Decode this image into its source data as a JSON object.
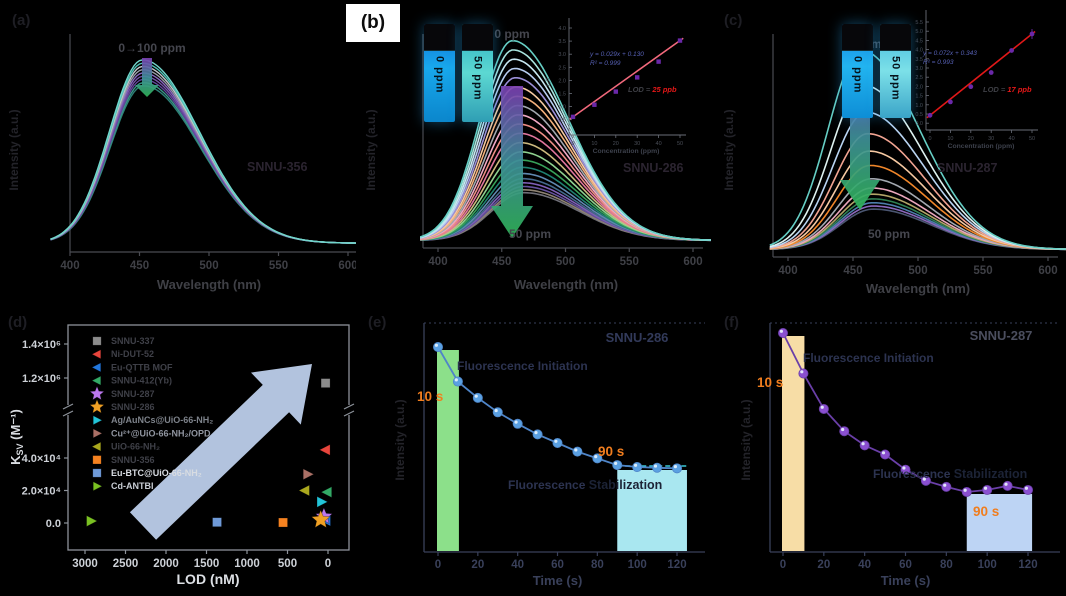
{
  "colors": {
    "background": "#000000",
    "accent_orange": "#f07d1e",
    "lod_red": "#e81818",
    "trend_arrow": "#bccdea",
    "kinetics_text": "#2c3350"
  },
  "labels": {
    "a": "(a)",
    "b": "(b)",
    "c": "(c)",
    "d": "(d)",
    "e": "(e)",
    "f": "(f)"
  },
  "chart_data": [
    {
      "id": "a",
      "type": "line",
      "subtype": "emission-spectra",
      "material": "SNNU-356",
      "xlabel": "Wavelength (nm)",
      "ylabel": "Intensity (a.u.)",
      "x_ticks": [
        400,
        450,
        500,
        550,
        600
      ],
      "xlim": [
        390,
        610
      ],
      "peak_nm": 452,
      "annotation": "0→100 ppm",
      "series_peaks": [
        0.955,
        0.938,
        0.921,
        0.904,
        0.887,
        0.87,
        0.853,
        0.836,
        0.82
      ],
      "series_colors": [
        "#72d6cc",
        "#4fc4b8",
        "#c2c6cc",
        "#989ca8",
        "#8a66c0",
        "#7452a8",
        "#60459a",
        "#3a9488",
        "#2d7f76"
      ],
      "arrow_colors": [
        "#7b3fb2",
        "#3f8f9a",
        "#2fb457"
      ]
    },
    {
      "id": "b",
      "type": "line",
      "subtype": "emission-spectra",
      "material": "SNNU-286",
      "xlabel": "Wavelength (nm)",
      "ylabel": "Intensity (a.u.)",
      "x_ticks": [
        400,
        450,
        500,
        550,
        600
      ],
      "xlim": [
        390,
        610
      ],
      "peak_nm": 458,
      "annotation_top": "0 ppm",
      "annotation_bottom": "50 ppm",
      "cuvette_labels": [
        "0 ppm",
        "50 ppm"
      ],
      "series_peaks": [
        0.97,
        0.925,
        0.88,
        0.835,
        0.79,
        0.745,
        0.7,
        0.655,
        0.61,
        0.565,
        0.52,
        0.475,
        0.43,
        0.39,
        0.355,
        0.325,
        0.3,
        0.28,
        0.262,
        0.246,
        0.232
      ],
      "series_colors": [
        "#66cfc5",
        "#a8e4de",
        "#c8e8f2",
        "#b8cdf0",
        "#9b8fd8",
        "#f6c9a2",
        "#f3b07c",
        "#a3a8b0",
        "#f0a8c4",
        "#ee8d86",
        "#e0759c",
        "#cdb97e",
        "#8fd18f",
        "#37a159",
        "#1f8070",
        "#5f88b0",
        "#44688c",
        "#7e5fb5",
        "#63509a",
        "#8d8272",
        "#6f6f78"
      ],
      "arrow_colors": [
        "#7b3fb2",
        "#3f8f9a",
        "#2fb457"
      ],
      "inset": {
        "equation": "y = 0.029x + 0.130",
        "r_squared": "R² = 0.999",
        "lod_prefix": "LOD = ",
        "lod_value": "25 ppb",
        "xlabel": "Concentration (ppm)",
        "ylabel": "I₀/I",
        "x_ticks": [
          0,
          10,
          20,
          30,
          40,
          50
        ],
        "y_ticks": [
          "4.0",
          "3.5",
          "3.0",
          "2.5",
          "2.0",
          "1.5",
          "1.0",
          "0.5"
        ],
        "points_x": [
          0,
          10,
          20,
          30,
          40,
          50
        ],
        "points_y": [
          0.62,
          1.08,
          1.58,
          2.12,
          2.72,
          3.52
        ],
        "line_color": "#f2697c",
        "point_color": "#6a28a8"
      }
    },
    {
      "id": "c",
      "type": "line",
      "subtype": "emission-spectra",
      "material": "SNNU-287",
      "xlabel": "Wavelength (nm)",
      "ylabel": "Intensity (a.u.)",
      "x_ticks": [
        400,
        450,
        500,
        550,
        600
      ],
      "xlim": [
        390,
        610
      ],
      "peak_nm": 456,
      "annotation_top": "0 ppm",
      "annotation_bottom": "50 ppm",
      "cuvette_labels": [
        "0 ppm",
        "50 ppm"
      ],
      "series_peaks": [
        0.97,
        0.8,
        0.67,
        0.565,
        0.48,
        0.41,
        0.345,
        0.3,
        0.27,
        0.247,
        0.228,
        0.212,
        0.197
      ],
      "series_colors": [
        "#66cfc5",
        "#dff2f0",
        "#b9d4f2",
        "#f2a492",
        "#f6c9a2",
        "#f0862a",
        "#a3a8b0",
        "#eaa6bc",
        "#b2a468",
        "#2f7f52",
        "#4d7dab",
        "#8a68bc",
        "#4a5570"
      ],
      "arrow_colors": [
        "#7b3fb2",
        "#3f8f9a",
        "#2fb457"
      ],
      "inset": {
        "equation": "y = 0.072x + 0.343",
        "r_squared": "R² = 0.993",
        "lod_prefix": "LOD = ",
        "lod_value": "17 ppb",
        "xlabel": "Concentration (ppm)",
        "ylabel": "I₀/I",
        "x_ticks": [
          0,
          10,
          20,
          30,
          40,
          50
        ],
        "y_ticks": [
          "5.5",
          "5.0",
          "4.5",
          "4.0",
          "3.5",
          "3.0",
          "2.5",
          "2.0",
          "1.5",
          "1.0",
          "0.5",
          "0.0"
        ],
        "points_x": [
          0,
          10,
          20,
          30,
          40,
          50
        ],
        "points_y": [
          0.42,
          1.15,
          1.98,
          2.75,
          3.95,
          4.85
        ],
        "line_color": "#e01818",
        "point_color": "#6a28a8"
      }
    },
    {
      "id": "d",
      "type": "scatter",
      "xlabel": "LOD (nM)",
      "ylabel_main": "K",
      "ylabel_sub": "SV",
      "ylabel_rest": " (M⁻¹)",
      "x_ticks": [
        3000,
        2500,
        2000,
        1500,
        1000,
        500,
        0
      ],
      "x_axis_reversed": true,
      "axis_break": true,
      "y_ticks_lower": [
        {
          "v": 0,
          "label": "0.0"
        },
        {
          "v": 20000,
          "label": "2.0×10⁴"
        },
        {
          "v": 40000,
          "label": "4.0×10⁴"
        }
      ],
      "y_ticks_upper": [
        {
          "v": 1200000,
          "label": "1.2×10⁶"
        },
        {
          "v": 1400000,
          "label": "1.4×10⁶"
        }
      ],
      "legend": [
        {
          "label": "SNNU-337",
          "marker": "square",
          "color": "#8c8c8c",
          "text_color": "#3f4048"
        },
        {
          "label": "Ni-DUT-52",
          "marker": "triangle-left",
          "color": "#e8453c",
          "text_color": "#3f4048"
        },
        {
          "label": "Eu-QTTB MOF",
          "marker": "triangle-left",
          "color": "#2277dd",
          "text_color": "#3f4048"
        },
        {
          "label": "SNNU-412(Yb)",
          "marker": "triangle-left",
          "color": "#33aa66",
          "text_color": "#3f4048"
        },
        {
          "label": "SNNU-287",
          "marker": "star",
          "color": "#bb77ee",
          "text_color": "#3f4048"
        },
        {
          "label": "SNNU-286",
          "marker": "star",
          "color": "#f0a024",
          "text_color": "#3f4048"
        },
        {
          "label": "Ag/AuNCs@UiO-66-NH₂",
          "marker": "triangle-right",
          "color": "#22c4d8",
          "text_color": "#7d828a"
        },
        {
          "label": "Cu²⁺@UiO-66-NH₂/OPD",
          "marker": "triangle-right",
          "color": "#aa7066",
          "text_color": "#9095a0"
        },
        {
          "label": "UiO-66-NH₂",
          "marker": "triangle-left",
          "color": "#aaa81e",
          "text_color": "#3f4048"
        },
        {
          "label": "SNNU-356",
          "marker": "square",
          "color": "#f58220",
          "text_color": "#3f4048"
        },
        {
          "label": "Eu-BTC@UiO-66-NH₂",
          "marker": "square",
          "color": "#6f9ad8",
          "text_color": "#d8dce2"
        },
        {
          "label": "Cd-ANTBI",
          "marker": "triangle-right",
          "color": "#7ac122",
          "text_color": "#c8cdd4"
        }
      ],
      "points": [
        {
          "lod_nM": 30,
          "ksv": 1170000
        },
        {
          "lod_nM": 30,
          "ksv": 45000
        },
        {
          "lod_nM": 25,
          "ksv": 1500
        },
        {
          "lod_nM": 10,
          "ksv": 19000
        },
        {
          "lod_nM": 50,
          "ksv": 4000
        },
        {
          "lod_nM": 90,
          "ksv": 2000
        },
        {
          "lod_nM": 80,
          "ksv": 13000
        },
        {
          "lod_nM": 250,
          "ksv": 30000
        },
        {
          "lod_nM": 285,
          "ksv": 20000
        },
        {
          "lod_nM": 555,
          "ksv": 300
        },
        {
          "lod_nM": 1370,
          "ksv": 500
        },
        {
          "lod_nM": 2925,
          "ksv": 1200
        }
      ]
    },
    {
      "id": "e",
      "type": "kinetics",
      "title": "SNNU-286",
      "xlabel": "Time (s)",
      "ylabel": "Intensity (a.u.)",
      "x_ticks": [
        0,
        20,
        40,
        60,
        80,
        100,
        120
      ],
      "x": [
        0,
        10,
        20,
        30,
        40,
        50,
        60,
        70,
        80,
        90,
        100,
        110,
        120
      ],
      "y": [
        1.0,
        0.82,
        0.735,
        0.66,
        0.6,
        0.545,
        0.5,
        0.455,
        0.42,
        0.385,
        0.375,
        0.371,
        0.368
      ],
      "line_color": "#4f85c8",
      "marker_color": "#5aa0e2",
      "plateau_dash": true,
      "bands": {
        "initiation": {
          "from": 0,
          "to": 10,
          "color": "#8ce08a"
        },
        "stabilization": {
          "from": 90,
          "to": 125,
          "color": "#a9e7f0"
        }
      },
      "annotations": {
        "initiation": "Fluorescence Initiation",
        "stabilization_prefix": "Fluorescence ",
        "stabilization_word": "Stabilization",
        "t_init": "10 s",
        "t_stab": "90 s"
      }
    },
    {
      "id": "f",
      "type": "kinetics",
      "title": "SNNU-287",
      "xlabel": "Time (s)",
      "ylabel": "Intensity (a.u.)",
      "x_ticks": [
        0,
        20,
        40,
        60,
        80,
        100,
        120
      ],
      "x": [
        0,
        10,
        20,
        30,
        40,
        50,
        60,
        70,
        80,
        90,
        100,
        110,
        120
      ],
      "y": [
        1.0,
        0.8,
        0.625,
        0.515,
        0.445,
        0.4,
        0.325,
        0.27,
        0.24,
        0.215,
        0.225,
        0.245,
        0.225
      ],
      "line_color": "#6a3fa8",
      "marker_color": "#8a4fd0",
      "plateau_dash": false,
      "bands": {
        "initiation": {
          "from": 0,
          "to": 10,
          "color": "#f7dda6"
        },
        "stabilization": {
          "from": 90,
          "to": 122,
          "color": "#bdd4f4"
        }
      },
      "annotations": {
        "initiation": "Fluorescence Initiation",
        "stabilization_prefix": "Fluorescence ",
        "stabilization_word": "Stabilization",
        "t_init": "10 s",
        "t_stab": "90 s"
      }
    }
  ]
}
